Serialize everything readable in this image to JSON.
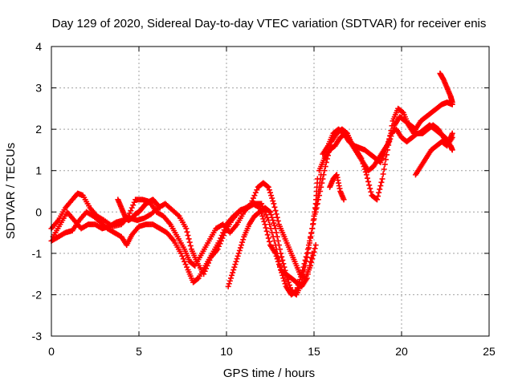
{
  "chart_data": {
    "type": "scatter",
    "title": "Day 129 of 2020, Sidereal Day-to-day VTEC variation (SDTVAR) for receiver enis",
    "xlabel": "GPS time / hours",
    "ylabel": "SDTVAR / TECUs",
    "xlim": [
      0,
      25
    ],
    "ylim": [
      -3,
      4
    ],
    "xticks": [
      "0",
      "5",
      "10",
      "15",
      "20",
      "25"
    ],
    "yticks": [
      "-3",
      "-2",
      "-1",
      "0",
      "1",
      "2",
      "3",
      "4"
    ],
    "grid": true,
    "marker": "+",
    "color": "#ff0000",
    "series": [
      {
        "x": [
          0.0,
          0.4,
          0.8,
          1.2,
          1.5,
          1.8,
          2.2,
          2.6,
          3.0,
          3.5,
          4.0,
          4.4,
          4.8,
          5.2,
          5.6,
          6.0,
          6.4,
          6.8,
          7.2,
          7.6,
          7.9,
          8.2,
          8.6,
          9.0,
          9.4,
          9.8,
          10.2,
          10.6,
          11.0,
          11.4,
          11.8,
          12.1,
          12.4,
          12.7,
          13.0,
          13.3,
          13.6,
          13.9,
          14.2,
          14.5,
          14.8,
          15.1
        ],
        "y": [
          -0.4,
          -0.2,
          0.1,
          0.3,
          0.45,
          0.4,
          0.1,
          -0.1,
          -0.2,
          -0.35,
          -0.3,
          -0.1,
          0.3,
          0.3,
          0.25,
          0.0,
          -0.1,
          -0.3,
          -0.6,
          -0.9,
          -1.2,
          -1.3,
          -1.0,
          -0.7,
          -0.4,
          -0.3,
          -0.5,
          -0.3,
          0.0,
          0.2,
          0.6,
          0.7,
          0.6,
          0.2,
          -0.3,
          -0.6,
          -0.9,
          -1.2,
          -1.5,
          -1.6,
          -1.3,
          -0.8
        ]
      },
      {
        "x": [
          0.0,
          0.4,
          0.8,
          1.2,
          1.6,
          2.0,
          2.4,
          2.8,
          3.2,
          3.6,
          4.0,
          4.3,
          4.6,
          5.0,
          5.4,
          5.8,
          6.2,
          6.6,
          7.0,
          7.4,
          7.8,
          8.1,
          8.4,
          8.8,
          9.2,
          9.6,
          10.0,
          10.4,
          10.8,
          11.2,
          11.6,
          12.0,
          12.4,
          12.8,
          13.1,
          13.4,
          13.7,
          14.0,
          14.3,
          14.6,
          14.9,
          15.1,
          15.2
        ],
        "y": [
          -0.7,
          -0.6,
          -0.5,
          -0.45,
          -0.2,
          0.0,
          -0.1,
          -0.25,
          -0.4,
          -0.5,
          -0.6,
          -0.8,
          -0.55,
          -0.35,
          -0.3,
          -0.3,
          -0.4,
          -0.5,
          -0.7,
          -1.0,
          -1.4,
          -1.7,
          -1.6,
          -1.3,
          -1.0,
          -0.7,
          -0.3,
          -0.1,
          0.05,
          0.1,
          0.2,
          0.2,
          -0.2,
          -0.8,
          -1.4,
          -1.8,
          -2.0,
          -1.9,
          -1.5,
          -1.0,
          -0.4,
          0.2,
          0.8
        ]
      },
      {
        "x": [
          0.1,
          0.5,
          0.9,
          1.3,
          1.7,
          2.1,
          2.5,
          2.9,
          3.3,
          3.7,
          4.1,
          4.5,
          4.9,
          5.3,
          5.7,
          6.1,
          6.5,
          6.9,
          7.3,
          7.7,
          8.0,
          8.3,
          8.7,
          9.1,
          9.5,
          9.9,
          10.3,
          10.7,
          11.1,
          11.5,
          11.9,
          12.2,
          12.5,
          12.8,
          13.1,
          13.4,
          13.7,
          14.0,
          14.3,
          14.6,
          14.9
        ],
        "y": [
          -0.6,
          -0.3,
          0.0,
          -0.2,
          -0.4,
          -0.3,
          -0.3,
          -0.4,
          -0.35,
          -0.25,
          -0.2,
          -0.15,
          -0.2,
          -0.15,
          -0.05,
          0.1,
          0.2,
          0.05,
          -0.1,
          -0.4,
          -0.9,
          -1.2,
          -1.5,
          -1.1,
          -0.9,
          -0.5,
          -0.2,
          0.0,
          0.1,
          0.2,
          0.1,
          -0.3,
          -0.8,
          -1.0,
          -1.4,
          -1.5,
          -1.6,
          -1.7,
          -1.8,
          -1.6,
          -1.0
        ]
      },
      {
        "x": [
          10.1,
          10.4,
          10.7,
          11.0,
          11.3,
          11.6,
          11.9,
          12.2,
          12.5,
          12.8,
          13.1,
          13.4,
          13.7,
          14.0,
          14.3,
          14.6,
          14.9,
          15.2,
          15.4
        ],
        "y": [
          -1.8,
          -1.4,
          -1.0,
          -0.6,
          -0.3,
          -0.1,
          0.0,
          0.1,
          0.0,
          -0.4,
          -1.0,
          -1.5,
          -1.9,
          -2.0,
          -1.7,
          -1.1,
          -0.4,
          0.3,
          0.9
        ]
      },
      {
        "x": [
          15.1,
          15.4,
          15.7,
          16.0,
          16.3,
          16.6,
          16.9,
          17.2,
          17.5,
          17.8,
          18.1,
          18.4,
          18.7,
          19.0,
          19.3,
          19.6,
          19.9,
          20.2,
          20.5,
          20.8,
          21.1,
          21.4,
          21.7,
          22.0,
          22.3,
          22.6,
          22.9
        ],
        "y": [
          0.0,
          0.6,
          1.2,
          1.7,
          1.9,
          2.0,
          1.9,
          1.6,
          1.4,
          1.2,
          1.0,
          1.1,
          1.3,
          1.5,
          1.7,
          2.1,
          2.3,
          2.2,
          2.1,
          2.0,
          2.2,
          2.3,
          2.4,
          2.5,
          2.6,
          2.65,
          2.6
        ]
      },
      {
        "x": [
          15.3,
          15.6,
          15.9,
          16.2,
          16.5,
          16.8,
          17.1,
          17.4,
          17.7,
          18.0,
          18.3,
          18.6,
          18.9,
          19.2,
          19.5,
          19.8,
          20.1,
          20.4,
          20.7,
          21.0,
          21.3,
          21.6,
          21.9,
          22.2,
          22.5,
          22.8,
          22.9
        ],
        "y": [
          1.0,
          1.3,
          1.5,
          1.6,
          1.8,
          1.9,
          1.7,
          1.5,
          1.3,
          0.9,
          0.4,
          0.3,
          0.8,
          1.5,
          2.2,
          2.5,
          2.4,
          2.1,
          1.9,
          1.9,
          2.0,
          2.1,
          2.0,
          1.9,
          1.8,
          1.6,
          1.5
        ]
      },
      {
        "x": [
          15.5,
          15.8,
          16.1,
          16.4,
          16.7,
          17.0,
          17.3,
          17.6,
          17.9,
          18.2,
          18.5,
          18.8,
          19.1,
          19.4,
          19.7,
          20.0,
          20.3,
          20.6,
          20.9,
          21.2,
          21.5,
          21.8,
          22.1,
          22.4,
          22.7,
          22.9
        ],
        "y": [
          1.4,
          1.6,
          1.9,
          2.0,
          1.9,
          1.7,
          1.6,
          1.55,
          1.5,
          1.4,
          1.3,
          1.2,
          1.5,
          1.9,
          2.0,
          1.8,
          1.7,
          1.8,
          1.9,
          1.9,
          2.0,
          2.1,
          2.0,
          1.8,
          1.7,
          1.9
        ]
      },
      {
        "x": [
          20.8,
          21.1,
          21.4,
          21.7,
          22.0,
          22.3,
          22.6,
          22.9
        ],
        "y": [
          0.9,
          1.1,
          1.3,
          1.5,
          1.6,
          1.7,
          1.6,
          1.8
        ]
      },
      {
        "x": [
          22.2,
          22.4,
          22.6,
          22.8,
          22.9
        ],
        "y": [
          3.35,
          3.2,
          3.0,
          2.8,
          2.65
        ]
      },
      {
        "x": [
          3.8,
          4.0,
          4.2,
          4.4,
          4.6,
          4.8,
          5.0,
          5.2,
          5.4,
          5.6,
          5.8,
          6.0,
          6.2
        ],
        "y": [
          0.3,
          0.1,
          -0.1,
          -0.2,
          -0.15,
          -0.05,
          0.0,
          0.1,
          0.2,
          0.25,
          0.3,
          0.2,
          0.1
        ]
      },
      {
        "x": [
          15.9,
          16.1,
          16.3,
          16.5,
          16.7
        ],
        "y": [
          0.6,
          0.8,
          0.9,
          0.5,
          0.3
        ]
      }
    ]
  }
}
